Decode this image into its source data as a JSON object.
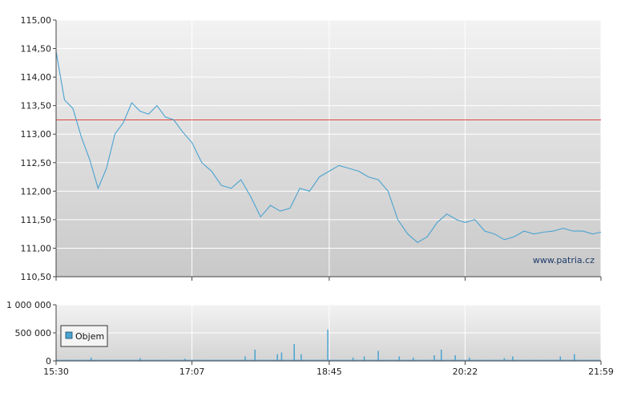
{
  "chart_data": [
    {
      "type": "line",
      "name": "price",
      "watermark": "www.patria.cz",
      "xlabel": "",
      "ylabel": "",
      "x_ticks": [
        "15:30",
        "17:07",
        "18:45",
        "20:22",
        "21:59"
      ],
      "y_ticks": [
        "115,00",
        "114,50",
        "114,00",
        "113,50",
        "113,00",
        "112,50",
        "112,00",
        "111,50",
        "111,00",
        "110,50"
      ],
      "ylim": [
        110.5,
        115.0
      ],
      "reference_line": 113.25,
      "grid": true,
      "series": [
        {
          "name": "",
          "x": [
            "15:30",
            "15:36",
            "15:42",
            "15:48",
            "15:54",
            "16:00",
            "16:06",
            "16:12",
            "16:18",
            "16:24",
            "16:30",
            "16:36",
            "16:42",
            "16:48",
            "16:54",
            "17:00",
            "17:07",
            "17:14",
            "17:21",
            "17:28",
            "17:35",
            "17:42",
            "17:49",
            "17:56",
            "18:03",
            "18:10",
            "18:17",
            "18:24",
            "18:31",
            "18:38",
            "18:45",
            "18:52",
            "18:59",
            "19:06",
            "19:13",
            "19:20",
            "19:27",
            "19:34",
            "19:41",
            "19:48",
            "19:55",
            "20:02",
            "20:09",
            "20:16",
            "20:22",
            "20:29",
            "20:36",
            "20:43",
            "20:50",
            "20:57",
            "21:04",
            "21:11",
            "21:18",
            "21:25",
            "21:32",
            "21:39",
            "21:46",
            "21:53",
            "21:59"
          ],
          "values": [
            114.45,
            113.6,
            113.45,
            112.95,
            112.55,
            112.05,
            112.4,
            113.0,
            113.2,
            113.55,
            113.4,
            113.35,
            113.5,
            113.3,
            113.25,
            113.05,
            112.85,
            112.5,
            112.35,
            112.1,
            112.05,
            112.2,
            111.9,
            111.55,
            111.75,
            111.65,
            111.7,
            112.05,
            112.0,
            112.25,
            112.35,
            112.45,
            112.4,
            112.35,
            112.25,
            112.2,
            112.0,
            111.5,
            111.25,
            111.1,
            111.2,
            111.45,
            111.6,
            111.5,
            111.45,
            111.5,
            111.3,
            111.25,
            111.15,
            111.2,
            111.3,
            111.25,
            111.28,
            111.3,
            111.35,
            111.3,
            111.3,
            111.25,
            111.28
          ]
        }
      ]
    },
    {
      "type": "bar",
      "name": "volume",
      "x_ticks": [
        "15:30",
        "17:07",
        "18:45",
        "20:22",
        "21:59"
      ],
      "y_ticks": [
        "1 000 000",
        "500 000",
        "0"
      ],
      "ylim": [
        0,
        1000000
      ],
      "legend": [
        "Objem"
      ],
      "legend_position": "left",
      "grid": true,
      "series": [
        {
          "name": "Objem",
          "x": [
            "15:55",
            "16:30",
            "17:02",
            "17:45",
            "17:52",
            "18:08",
            "18:11",
            "18:20",
            "18:25",
            "18:44",
            "19:02",
            "19:10",
            "19:20",
            "19:35",
            "19:45",
            "20:00",
            "20:05",
            "20:15",
            "20:25",
            "20:50",
            "20:56",
            "21:30",
            "21:40"
          ],
          "values": [
            60000,
            50000,
            40000,
            80000,
            200000,
            120000,
            150000,
            300000,
            120000,
            560000,
            60000,
            80000,
            180000,
            80000,
            60000,
            100000,
            200000,
            100000,
            60000,
            50000,
            80000,
            80000,
            120000
          ]
        }
      ]
    }
  ],
  "colors": {
    "line": "#4aa3d0",
    "reference": "#e0443c",
    "bars": "#4aa3d0",
    "frame": "#444444"
  }
}
